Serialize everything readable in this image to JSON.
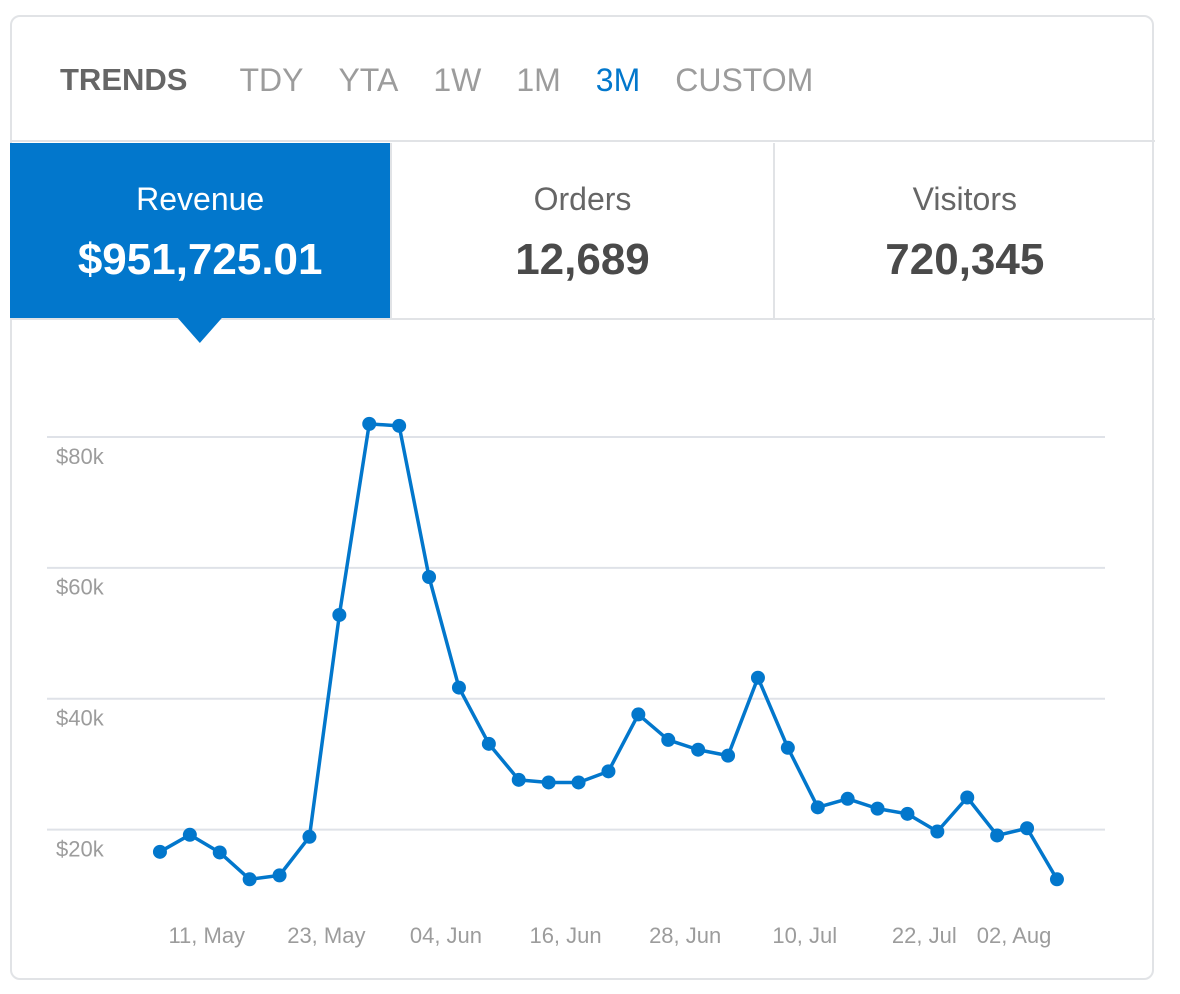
{
  "header": {
    "title": "TRENDS",
    "tabs": [
      {
        "label": "TDY"
      },
      {
        "label": "YTA"
      },
      {
        "label": "1W"
      },
      {
        "label": "1M"
      },
      {
        "label": "3M",
        "active": true
      },
      {
        "label": "CUSTOM"
      }
    ]
  },
  "stats": [
    {
      "label": "Revenue",
      "value": "$951,725.01",
      "active": true
    },
    {
      "label": "Orders",
      "value": "12,689"
    },
    {
      "label": "Visitors",
      "value": "720,345"
    }
  ],
  "chart_data": {
    "type": "line",
    "color": "#0277cc",
    "categories": [
      null,
      null,
      "11, May",
      null,
      null,
      null,
      "23, May",
      null,
      null,
      null,
      "04, Jun",
      null,
      null,
      null,
      "16, Jun",
      null,
      null,
      null,
      "28, Jun",
      null,
      null,
      null,
      "10, Jul",
      null,
      null,
      null,
      "22, Jul",
      null,
      null,
      "02, Aug",
      null
    ],
    "values": [
      16600,
      19200,
      16500,
      12400,
      13000,
      18900,
      52800,
      82000,
      81700,
      58600,
      41700,
      33100,
      27600,
      27200,
      27200,
      28900,
      37600,
      33700,
      32200,
      31300,
      43200,
      32500,
      23400,
      24700,
      23200,
      22400,
      19700,
      24900,
      19100,
      20200,
      12400
    ],
    "ylim": [
      10000,
      86000
    ],
    "yticks": [
      {
        "value": 20000,
        "label": "$20k"
      },
      {
        "value": 40000,
        "label": "$40k"
      },
      {
        "value": 60000,
        "label": "$60k"
      },
      {
        "value": 80000,
        "label": "$80k"
      }
    ],
    "grid": true,
    "markers": true
  }
}
